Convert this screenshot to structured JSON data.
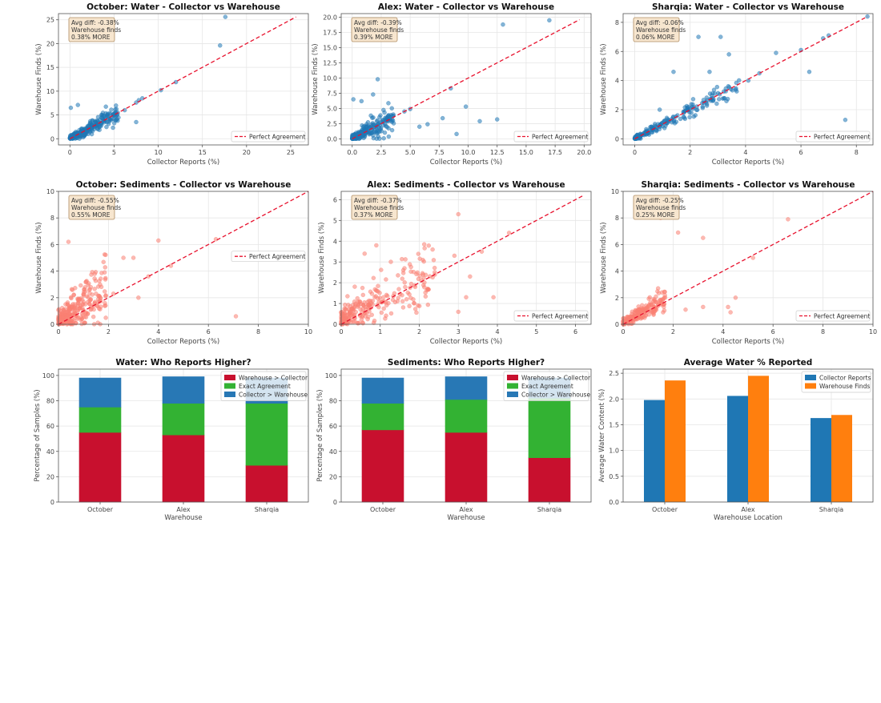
{
  "colors": {
    "water_points": "#1f77b4",
    "sediment_points": "#fa8072",
    "perfect_line": "#e8112d",
    "bar_warehouse_gt": "#c8102e",
    "bar_exact": "#33b233",
    "bar_collector_gt": "#2878b5",
    "avg_collector": "#1f77b4",
    "avg_warehouse": "#ff7f0e",
    "anno_fill": "#f7e6cf",
    "anno_stroke": "#b08d62"
  },
  "chart_data": [
    {
      "id": "oct-water",
      "type": "scatter",
      "title": "October: Water - Collector vs Warehouse",
      "xlabel": "Collector Reports (%)",
      "ylabel": "Warehouse Finds (%)",
      "xlim": [
        -1.3,
        27
      ],
      "ylim": [
        -1.3,
        26.3
      ],
      "xticks": [
        0,
        5,
        10,
        15,
        20,
        25
      ],
      "yticks": [
        0,
        5,
        10,
        15,
        20,
        25
      ],
      "tick_decimals": 0,
      "series_kind": "water",
      "annotation": [
        "Avg diff: -0.38%",
        "Warehouse finds",
        "0.38% MORE"
      ],
      "legend": "Perfect Agreement",
      "legend_position": "lower-right",
      "line_end": 25.6,
      "gen": {
        "n": 230,
        "seed": 11,
        "xmax": 5.5,
        "sd": 0.9
      },
      "points": [
        [
          17.6,
          25.6
        ],
        [
          17.0,
          19.6
        ],
        [
          12.0,
          11.9
        ],
        [
          10.3,
          10.2
        ],
        [
          8.2,
          8.5
        ],
        [
          7.8,
          8.1
        ],
        [
          7.5,
          7.6
        ],
        [
          6.2,
          6.0
        ],
        [
          5.3,
          4.9
        ],
        [
          5.0,
          5.3
        ],
        [
          7.5,
          3.5
        ],
        [
          0.1,
          6.5
        ],
        [
          0.9,
          7.1
        ]
      ]
    },
    {
      "id": "alex-water",
      "type": "scatter",
      "title": "Alex: Water - Collector vs Warehouse",
      "xlabel": "Collector Reports (%)",
      "ylabel": "Warehouse Finds (%)",
      "xlim": [
        -0.95,
        20.6
      ],
      "ylim": [
        -1.0,
        20.6
      ],
      "xticks": [
        0.0,
        2.5,
        5.0,
        7.5,
        10.0,
        12.5,
        15.0,
        17.5,
        20.0
      ],
      "yticks": [
        0.0,
        2.5,
        5.0,
        7.5,
        10.0,
        12.5,
        15.0,
        17.5,
        20.0
      ],
      "tick_decimals": 1,
      "series_kind": "water",
      "annotation": [
        "Avg diff: -0.39%",
        "Warehouse finds",
        "0.39% MORE"
      ],
      "legend": "Perfect Agreement",
      "legend_position": "lower-right",
      "line_end": 19.6,
      "gen": {
        "n": 220,
        "seed": 23,
        "xmax": 3.6,
        "sd": 0.9
      },
      "points": [
        [
          17.0,
          19.5
        ],
        [
          13.0,
          18.8
        ],
        [
          12.5,
          3.2
        ],
        [
          11.0,
          2.9
        ],
        [
          9.8,
          5.3
        ],
        [
          9.0,
          0.8
        ],
        [
          8.5,
          8.3
        ],
        [
          7.8,
          3.4
        ],
        [
          6.5,
          2.4
        ],
        [
          5.8,
          2.0
        ],
        [
          5.0,
          4.9
        ],
        [
          4.5,
          4.5
        ],
        [
          2.2,
          9.8
        ],
        [
          1.8,
          7.3
        ],
        [
          0.8,
          6.2
        ],
        [
          0.1,
          6.5
        ]
      ]
    },
    {
      "id": "sharqia-water",
      "type": "scatter",
      "title": "Sharqia: Water - Collector vs Warehouse",
      "xlabel": "Collector Reports (%)",
      "ylabel": "Warehouse Finds (%)",
      "xlim": [
        -0.42,
        8.6
      ],
      "ylim": [
        -0.42,
        8.6
      ],
      "xticks": [
        0,
        2,
        4,
        6,
        8
      ],
      "yticks": [
        0,
        2,
        4,
        6,
        8
      ],
      "tick_decimals": 0,
      "series_kind": "water",
      "annotation": [
        "Avg diff: -0.06%",
        "Warehouse finds",
        "0.06% MORE"
      ],
      "legend": "Perfect Agreement",
      "legend_position": "lower-right",
      "line_end": 8.4,
      "gen": {
        "n": 200,
        "seed": 37,
        "xmax": 3.8,
        "sd": 0.28
      },
      "points": [
        [
          8.4,
          8.4
        ],
        [
          7.6,
          1.3
        ],
        [
          7.0,
          7.1
        ],
        [
          6.8,
          6.9
        ],
        [
          6.3,
          4.6
        ],
        [
          6.0,
          6.1
        ],
        [
          5.1,
          5.9
        ],
        [
          4.5,
          4.5
        ],
        [
          4.1,
          4.0
        ],
        [
          3.4,
          5.8
        ],
        [
          3.1,
          7.0
        ],
        [
          2.7,
          4.6
        ],
        [
          2.3,
          7.0
        ],
        [
          1.4,
          4.6
        ],
        [
          0.9,
          2.0
        ]
      ]
    },
    {
      "id": "oct-sed",
      "type": "scatter",
      "title": "October: Sediments - Collector vs Warehouse",
      "xlabel": "Collector Reports (%)",
      "ylabel": "Warehouse Finds (%)",
      "xlim": [
        0,
        10
      ],
      "ylim": [
        0,
        10
      ],
      "xticks": [
        0,
        2,
        4,
        6,
        8,
        10
      ],
      "yticks": [
        0,
        2,
        4,
        6,
        8,
        10
      ],
      "tick_decimals": 0,
      "series_kind": "sediment",
      "annotation": [
        "Avg diff: -0.55%",
        "Warehouse finds",
        "0.55% MORE"
      ],
      "legend": "Perfect Agreement",
      "legend_position": "center-right",
      "line_end": 10,
      "gen": {
        "n": 280,
        "seed": 51,
        "xmax": 1.9,
        "sd": 1.1,
        "bias": 0.55
      },
      "points": [
        [
          7.1,
          0.6
        ],
        [
          6.3,
          6.4
        ],
        [
          4.5,
          4.4
        ],
        [
          4.0,
          6.3
        ],
        [
          3.6,
          3.6
        ],
        [
          3.2,
          2.0
        ],
        [
          3.0,
          5.0
        ],
        [
          2.6,
          5.0
        ],
        [
          2.2,
          2.3
        ],
        [
          0.4,
          6.2
        ]
      ]
    },
    {
      "id": "alex-sed",
      "type": "scatter",
      "title": "Alex: Sediments - Collector vs Warehouse",
      "xlabel": "Collector Reports (%)",
      "ylabel": "Warehouse Finds (%)",
      "xlim": [
        0,
        6.4
      ],
      "ylim": [
        0,
        6.4
      ],
      "xticks": [
        0,
        1,
        2,
        3,
        4,
        5,
        6
      ],
      "yticks": [
        0,
        1,
        2,
        3,
        4,
        5,
        6
      ],
      "tick_decimals": 0,
      "series_kind": "sediment",
      "annotation": [
        "Avg diff: -0.37%",
        "Warehouse finds",
        "0.37% MORE"
      ],
      "legend": "Perfect Agreement",
      "legend_position": "lower-right",
      "line_end": 6.2,
      "gen": {
        "n": 260,
        "seed": 63,
        "xmax": 2.4,
        "sd": 0.75,
        "bias": 0.37
      },
      "points": [
        [
          4.3,
          4.4
        ],
        [
          3.9,
          1.3
        ],
        [
          3.6,
          3.5
        ],
        [
          3.3,
          2.3
        ],
        [
          3.2,
          1.3
        ],
        [
          3.0,
          0.6
        ],
        [
          3.0,
          5.3
        ],
        [
          2.9,
          3.3
        ],
        [
          0.9,
          3.8
        ],
        [
          0.6,
          3.4
        ]
      ]
    },
    {
      "id": "sharqia-sed",
      "type": "scatter",
      "title": "Sharqia: Sediments - Collector vs Warehouse",
      "xlabel": "Collector Reports (%)",
      "ylabel": "Warehouse Finds (%)",
      "xlim": [
        0,
        10
      ],
      "ylim": [
        0,
        10
      ],
      "xticks": [
        0,
        2,
        4,
        6,
        8,
        10
      ],
      "yticks": [
        0,
        2,
        4,
        6,
        8,
        10
      ],
      "tick_decimals": 0,
      "series_kind": "sediment",
      "annotation": [
        "Avg diff: -0.25%",
        "Warehouse finds",
        "0.25% MORE"
      ],
      "legend": "Perfect Agreement",
      "legend_position": "lower-right",
      "line_end": 10,
      "gen": {
        "n": 180,
        "seed": 77,
        "xmax": 1.7,
        "sd": 0.35,
        "bias": 0.25
      },
      "points": [
        [
          6.6,
          7.9
        ],
        [
          5.2,
          5.0
        ],
        [
          4.5,
          2.0
        ],
        [
          4.3,
          0.9
        ],
        [
          4.2,
          1.3
        ],
        [
          3.2,
          6.5
        ],
        [
          3.2,
          1.3
        ],
        [
          2.5,
          1.1
        ],
        [
          2.2,
          6.9
        ],
        [
          1.5,
          8.0
        ],
        [
          1.4,
          2.7
        ]
      ]
    },
    {
      "id": "water-who",
      "type": "bar",
      "stacked": true,
      "title": "Water: Who Reports Higher?",
      "xlabel": "Warehouse",
      "ylabel": "Percentage of Samples (%)",
      "categories": [
        "October",
        "Alex",
        "Sharqia"
      ],
      "ylim": [
        0,
        105
      ],
      "yticks": [
        0,
        20,
        40,
        60,
        80,
        100
      ],
      "legend_position": "upper-right",
      "series": [
        {
          "name": "Warehouse > Collector",
          "values": [
            55,
            53,
            29
          ]
        },
        {
          "name": "Exact Agreement",
          "values": [
            20,
            25,
            49
          ]
        },
        {
          "name": "Collector > Warehouse",
          "values": [
            23,
            21,
            20
          ]
        }
      ]
    },
    {
      "id": "sed-who",
      "type": "bar",
      "stacked": true,
      "title": "Sediments: Who Reports Higher?",
      "xlabel": "Warehouse",
      "ylabel": "Percentage of Samples (%)",
      "categories": [
        "October",
        "Alex",
        "Sharqia"
      ],
      "ylim": [
        0,
        105
      ],
      "yticks": [
        0,
        20,
        40,
        60,
        80,
        100
      ],
      "legend_position": "upper-right",
      "series": [
        {
          "name": "Warehouse > Collector",
          "values": [
            57,
            55,
            35
          ]
        },
        {
          "name": "Exact Agreement",
          "values": [
            21,
            26,
            47
          ]
        },
        {
          "name": "Collector > Warehouse",
          "values": [
            20,
            18,
            16
          ]
        }
      ]
    },
    {
      "id": "avg-water",
      "type": "bar",
      "stacked": false,
      "title": "Average Water % Reported",
      "xlabel": "Warehouse Location",
      "ylabel": "Average Water Content (%)",
      "categories": [
        "October",
        "Alex",
        "Sharqia"
      ],
      "ylim": [
        0,
        2.58
      ],
      "yticks": [
        0.0,
        0.5,
        1.0,
        1.5,
        2.0,
        2.5
      ],
      "legend_position": "upper-right",
      "series": [
        {
          "name": "Collector Reports",
          "values": [
            1.98,
            2.06,
            1.63
          ]
        },
        {
          "name": "Warehouse Finds",
          "values": [
            2.36,
            2.45,
            1.69
          ]
        }
      ]
    }
  ]
}
